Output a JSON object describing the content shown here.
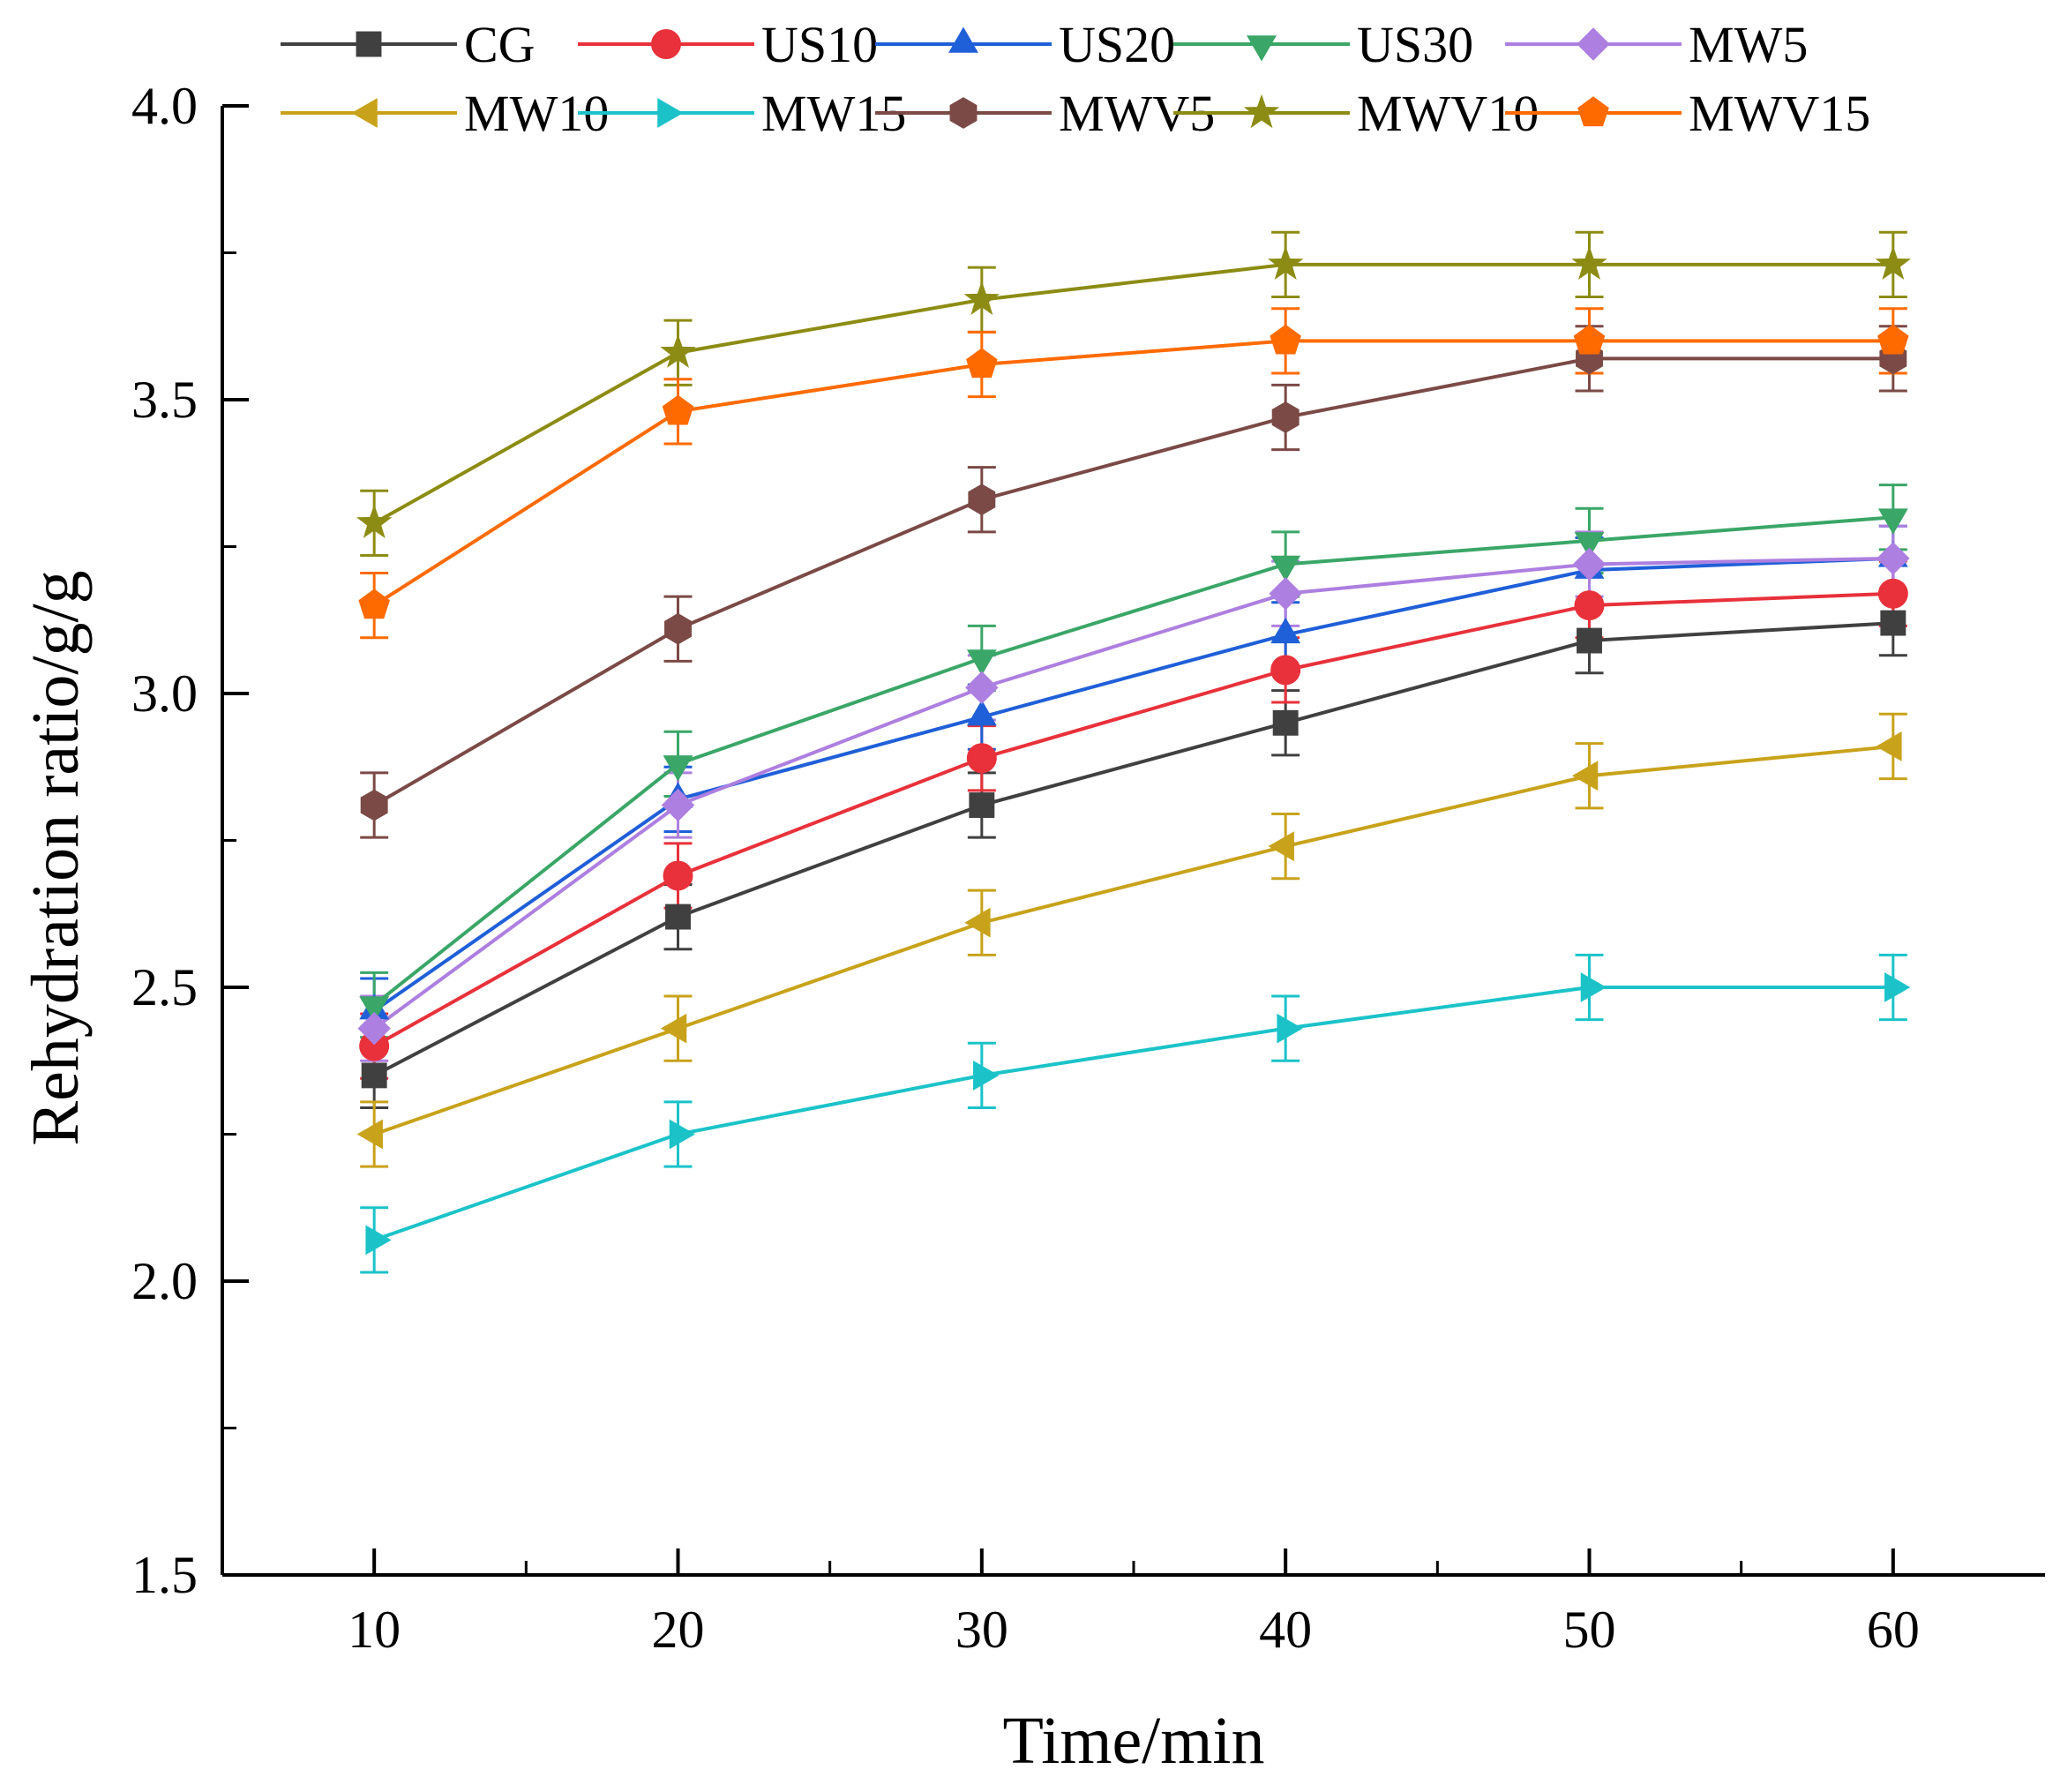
{
  "chart_data": {
    "type": "line",
    "title": "",
    "xlabel": "Time/min",
    "ylabel": "Rehydration ratio/g/g",
    "x": [
      10,
      20,
      30,
      40,
      50,
      60
    ],
    "xlim": [
      5,
      65
    ],
    "ylim": [
      1.5,
      4.0
    ],
    "x_ticks": [
      10,
      20,
      30,
      40,
      50,
      60
    ],
    "x_tick_labels": [
      "10",
      "20",
      "30",
      "40",
      "50",
      "60"
    ],
    "y_ticks": [
      1.5,
      2.0,
      2.5,
      3.0,
      3.5,
      4.0
    ],
    "y_tick_labels": [
      "1.5",
      "2.0",
      "2.5",
      "3.0",
      "3.5",
      "4.0"
    ],
    "grid": false,
    "legend_position": "top",
    "error_bar": 0.055,
    "series": [
      {
        "name": "CG",
        "color": "#404040",
        "marker": "square",
        "values": [
          2.35,
          2.62,
          2.81,
          2.95,
          3.09,
          3.12
        ]
      },
      {
        "name": "US10",
        "color": "#e8313a",
        "marker": "circle",
        "values": [
          2.4,
          2.69,
          2.89,
          3.04,
          3.15,
          3.17
        ]
      },
      {
        "name": "US20",
        "color": "#1f5fd8",
        "marker": "triangle-up",
        "values": [
          2.46,
          2.82,
          2.96,
          3.1,
          3.21,
          3.23
        ]
      },
      {
        "name": "US30",
        "color": "#3aa667",
        "marker": "triangle-down",
        "values": [
          2.47,
          2.88,
          3.06,
          3.22,
          3.26,
          3.3
        ]
      },
      {
        "name": "MW5",
        "color": "#ad7fe0",
        "marker": "diamond",
        "values": [
          2.43,
          2.81,
          3.01,
          3.17,
          3.22,
          3.23
        ]
      },
      {
        "name": "MW10",
        "color": "#c8a21a",
        "marker": "triangle-left",
        "values": [
          2.25,
          2.43,
          2.61,
          2.74,
          2.86,
          2.91
        ]
      },
      {
        "name": "MW15",
        "color": "#1bc3c9",
        "marker": "triangle-right",
        "values": [
          2.07,
          2.25,
          2.35,
          2.43,
          2.5,
          2.5
        ]
      },
      {
        "name": "MWV5",
        "color": "#7b4a46",
        "marker": "hexagon",
        "values": [
          2.81,
          3.11,
          3.33,
          3.47,
          3.57,
          3.57
        ]
      },
      {
        "name": "MWV10",
        "color": "#8c8c14",
        "marker": "star",
        "values": [
          3.29,
          3.58,
          3.67,
          3.73,
          3.73,
          3.73
        ]
      },
      {
        "name": "MWV15",
        "color": "#ff6a00",
        "marker": "pentagon",
        "values": [
          3.15,
          3.48,
          3.56,
          3.6,
          3.6,
          3.6
        ]
      }
    ]
  }
}
